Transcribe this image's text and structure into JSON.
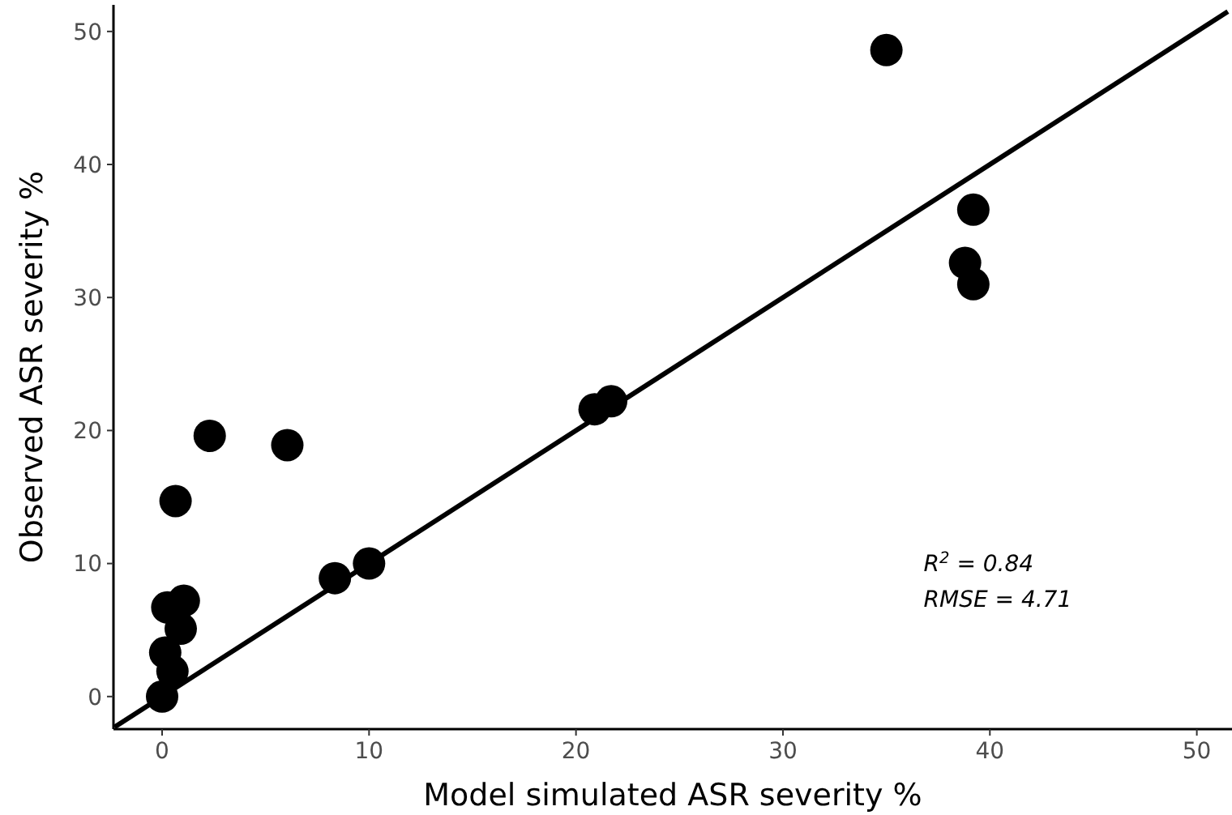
{
  "chart_data": {
    "type": "scatter",
    "xlabel": "Model simulated ASR severity %",
    "ylabel": "Observed ASR severity %",
    "xlim": [
      -2.35,
      51.7
    ],
    "ylim": [
      -2.45,
      52
    ],
    "xticks": [
      0,
      10,
      20,
      30,
      40,
      50
    ],
    "yticks": [
      0,
      10,
      20,
      30,
      40,
      50
    ],
    "grid": false,
    "annotations": [
      "R$^{2}$ = 0.84",
      "RMSE = 4.71"
    ],
    "series": [
      {
        "color": "#000000",
        "marker": "circle",
        "x": [
          2.3,
          6.05,
          0.65,
          10.0,
          8.35,
          20.9,
          21.7,
          1.05,
          0.25,
          0.9,
          0.15,
          0.5,
          0,
          35.0,
          39.2,
          38.8,
          39.2
        ],
        "values": [
          19.6,
          18.9,
          14.7,
          10.0,
          8.9,
          21.6,
          22.2,
          7.2,
          6.7,
          5.1,
          3.3,
          1.9,
          0,
          48.6,
          36.6,
          32.6,
          31.0
        ]
      },
      {
        "type": "line",
        "color": "#000000",
        "marker": "none",
        "line_style": "solid",
        "x": [
          -2.3,
          51.5
        ],
        "values": [
          -2.3,
          51.5
        ]
      }
    ]
  }
}
